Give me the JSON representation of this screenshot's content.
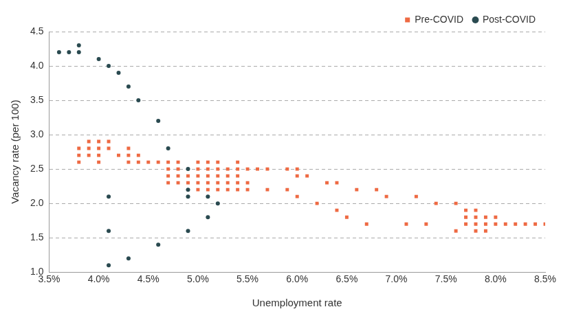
{
  "chart_data": {
    "type": "scatter",
    "x_label": "Unemployment rate",
    "y_label": "Vacancy rate (per 100)",
    "xlim": [
      3.5,
      8.5
    ],
    "xticks": [
      {
        "value": 3.5,
        "label": "3.5%"
      },
      {
        "value": 4.0,
        "label": "4.0%"
      },
      {
        "value": 4.5,
        "label": "4.5%"
      },
      {
        "value": 5.0,
        "label": "5.0%"
      },
      {
        "value": 5.5,
        "label": "5.5%"
      },
      {
        "value": 6.0,
        "label": "6.0%"
      },
      {
        "value": 6.5,
        "label": "6.5%"
      },
      {
        "value": 7.0,
        "label": "7.0%"
      },
      {
        "value": 7.5,
        "label": "7.5%"
      },
      {
        "value": 8.0,
        "label": "8.0%"
      },
      {
        "value": 8.5,
        "label": "8.5%"
      }
    ],
    "ylim": [
      1.0,
      4.5
    ],
    "yticks": [
      {
        "value": 1.0,
        "label": "1.0"
      },
      1.5,
      {
        "value": 2.0,
        "label": "2.0"
      },
      2.5,
      {
        "value": 3.0,
        "label": "3.0"
      },
      3.5,
      {
        "value": 4.0,
        "label": "4.0"
      },
      4.5
    ],
    "grid": "y",
    "legend": "top-right",
    "series": [
      {
        "name": "Pre-COVID",
        "color": "#ee6a43",
        "marker": "square",
        "x": [
          3.8,
          3.8,
          3.8,
          3.9,
          3.9,
          3.9,
          4.0,
          4.0,
          4.0,
          4.0,
          4.1,
          4.1,
          4.2,
          4.3,
          4.3,
          4.3,
          4.4,
          4.4,
          4.5,
          4.6,
          4.7,
          4.7,
          4.7,
          4.7,
          4.8,
          4.8,
          4.8,
          4.8,
          4.9,
          4.9,
          5.0,
          5.0,
          5.0,
          5.0,
          5.0,
          5.1,
          5.1,
          5.1,
          5.1,
          5.1,
          5.2,
          5.2,
          5.2,
          5.2,
          5.2,
          5.3,
          5.3,
          5.3,
          5.3,
          5.4,
          5.4,
          5.4,
          5.4,
          5.4,
          5.5,
          5.5,
          5.5,
          5.6,
          5.7,
          5.7,
          5.9,
          5.9,
          6.0,
          6.0,
          6.0,
          6.1,
          6.2,
          6.3,
          6.4,
          6.4,
          6.5,
          6.6,
          6.7,
          6.8,
          6.9,
          7.1,
          7.2,
          7.3,
          7.4,
          7.6,
          7.6,
          7.7,
          7.7,
          7.7,
          7.8,
          7.8,
          7.8,
          7.8,
          7.9,
          7.9,
          7.9,
          8.0,
          8.0,
          8.1,
          8.2,
          8.3,
          8.4,
          8.5
        ],
        "values": [
          2.6,
          2.7,
          2.8,
          2.7,
          2.8,
          2.9,
          2.6,
          2.7,
          2.8,
          2.9,
          2.8,
          2.9,
          2.7,
          2.6,
          2.7,
          2.8,
          2.6,
          2.7,
          2.6,
          2.6,
          2.3,
          2.4,
          2.5,
          2.6,
          2.3,
          2.4,
          2.5,
          2.6,
          2.3,
          2.4,
          2.2,
          2.3,
          2.4,
          2.5,
          2.6,
          2.2,
          2.3,
          2.4,
          2.5,
          2.6,
          2.2,
          2.3,
          2.4,
          2.5,
          2.6,
          2.2,
          2.3,
          2.4,
          2.5,
          2.2,
          2.3,
          2.4,
          2.5,
          2.6,
          2.2,
          2.3,
          2.5,
          2.5,
          2.2,
          2.5,
          2.2,
          2.5,
          2.1,
          2.4,
          2.5,
          2.4,
          2.0,
          2.3,
          1.9,
          2.3,
          1.8,
          2.2,
          1.7,
          2.2,
          2.1,
          1.7,
          2.1,
          1.7,
          2.0,
          1.6,
          2.0,
          1.7,
          1.8,
          1.9,
          1.6,
          1.7,
          1.8,
          1.9,
          1.6,
          1.7,
          1.8,
          1.7,
          1.8,
          1.7,
          1.7,
          1.7,
          1.7,
          1.7
        ]
      },
      {
        "name": "Post-COVID",
        "color": "#2a4a50",
        "marker": "circle",
        "x": [
          3.6,
          3.7,
          3.8,
          3.8,
          4.0,
          4.1,
          4.2,
          4.3,
          4.4,
          4.6,
          4.7,
          4.9,
          4.9,
          4.9,
          5.1,
          5.2,
          5.1,
          4.9,
          4.1,
          4.1,
          4.1,
          4.3,
          4.6
        ],
        "values": [
          4.2,
          4.2,
          4.2,
          4.3,
          4.1,
          4.0,
          3.9,
          3.7,
          3.5,
          3.2,
          2.8,
          2.5,
          2.2,
          2.1,
          2.1,
          2.0,
          1.8,
          1.6,
          2.1,
          1.6,
          1.1,
          1.2,
          1.4
        ]
      }
    ]
  }
}
